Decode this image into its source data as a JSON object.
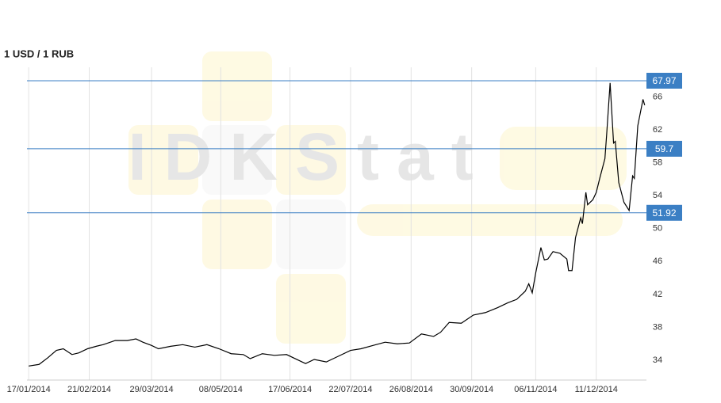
{
  "chart_data": {
    "type": "line",
    "title": "1 USD / 1 RUB",
    "watermark": "IDKStat",
    "x": [
      "17/01/2014",
      "23/01/2014",
      "28/01/2014",
      "02/02/2014",
      "06/02/2014",
      "11/02/2014",
      "15/02/2014",
      "20/02/2014",
      "25/02/2014",
      "01/03/2014",
      "08/03/2014",
      "15/03/2014",
      "20/03/2014",
      "24/03/2014",
      "29/03/2014",
      "02/04/2014",
      "09/04/2014",
      "16/04/2014",
      "23/04/2014",
      "30/04/2014",
      "07/05/2014",
      "14/05/2014",
      "21/05/2014",
      "25/05/2014",
      "01/06/2014",
      "08/06/2014",
      "15/06/2014",
      "22/06/2014",
      "26/06/2014",
      "01/07/2014",
      "08/07/2014",
      "15/07/2014",
      "22/07/2014",
      "28/07/2014",
      "04/08/2014",
      "11/08/2014",
      "18/08/2014",
      "25/08/2014",
      "01/09/2014",
      "08/09/2014",
      "12/09/2014",
      "17/09/2014",
      "24/09/2014",
      "01/10/2014",
      "08/10/2014",
      "15/10/2014",
      "21/10/2014",
      "26/10/2014",
      "31/10/2014",
      "02/11/2014",
      "04/11/2014",
      "06/11/2014",
      "09/11/2014",
      "11/11/2014",
      "13/11/2014",
      "16/11/2014",
      "20/11/2014",
      "24/11/2014",
      "25/11/2014",
      "27/11/2014",
      "29/11/2014",
      "02/12/2014",
      "03/12/2014",
      "05/12/2014",
      "06/12/2014",
      "09/12/2014",
      "11/12/2014",
      "13/12/2014",
      "16/12/2014",
      "17/12/2014",
      "19/12/2014",
      "21/12/2014",
      "22/12/2014",
      "24/12/2014",
      "27/12/2014",
      "30/12/2014",
      "01/01/2015",
      "02/01/2015",
      "04/01/2015",
      "07/01/2015",
      "08/01/2015"
    ],
    "series": [
      {
        "name": "1 USD / 1 RUB",
        "color": "#000000",
        "values": [
          33.3,
          33.5,
          34.3,
          35.2,
          35.4,
          34.7,
          34.9,
          35.4,
          35.7,
          35.9,
          36.4,
          36.4,
          36.6,
          36.2,
          35.8,
          35.4,
          35.7,
          35.9,
          35.6,
          35.9,
          35.4,
          34.8,
          34.7,
          34.2,
          34.8,
          34.6,
          34.7,
          34.0,
          33.6,
          34.1,
          33.8,
          34.5,
          35.2,
          35.4,
          35.8,
          36.2,
          36.0,
          36.1,
          37.2,
          36.9,
          37.4,
          38.6,
          38.5,
          39.5,
          39.8,
          40.4,
          41.0,
          41.4,
          42.4,
          43.3,
          42.2,
          44.6,
          47.7,
          46.2,
          46.3,
          47.2,
          47.0,
          46.3,
          44.9,
          44.9,
          48.9,
          51.3,
          50.6,
          54.4,
          52.9,
          53.5,
          54.4,
          56.1,
          58.5,
          61.4,
          67.7,
          60.4,
          60.6,
          55.6,
          53.2,
          52.2,
          56.4,
          56.1,
          62.5,
          65.7,
          65.0
        ]
      }
    ],
    "xlim": [
      "16/01/2014",
      "09/01/2015"
    ],
    "xticks": [
      "17/01/2014",
      "21/02/2014",
      "29/03/2014",
      "08/05/2014",
      "17/06/2014",
      "22/07/2014",
      "26/08/2014",
      "30/09/2014",
      "06/11/2014",
      "11/12/2014"
    ],
    "ylim": [
      31.6,
      69.6
    ],
    "yticks": [
      34,
      38,
      42,
      46,
      50,
      54,
      58,
      62,
      66
    ],
    "hlines": [
      {
        "value": 67.97,
        "color": "#3b7fc4"
      },
      {
        "value": 59.7,
        "color": "#3b7fc4"
      },
      {
        "value": 51.92,
        "color": "#3b7fc4"
      }
    ],
    "grid": true
  }
}
